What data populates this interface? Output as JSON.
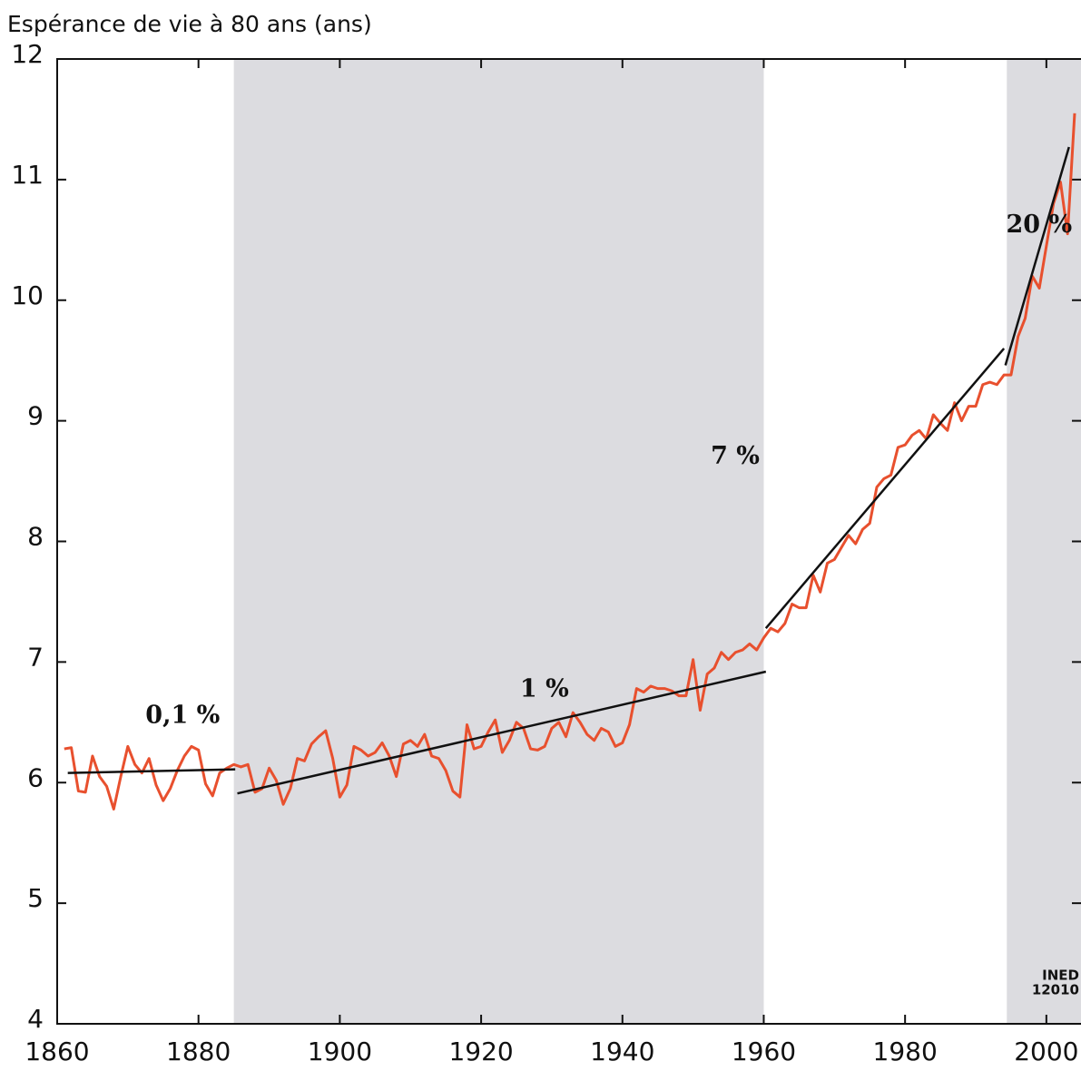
{
  "chart_data": {
    "type": "line",
    "title": "Espérance de vie à 80 ans (ans)",
    "source": [
      "INED",
      "12010"
    ],
    "x": [
      1861,
      1862,
      1863,
      1864,
      1865,
      1866,
      1867,
      1868,
      1869,
      1870,
      1871,
      1872,
      1873,
      1874,
      1875,
      1876,
      1877,
      1878,
      1879,
      1880,
      1881,
      1882,
      1883,
      1884,
      1885,
      1886,
      1887,
      1888,
      1889,
      1890,
      1891,
      1892,
      1893,
      1894,
      1895,
      1896,
      1897,
      1898,
      1899,
      1900,
      1901,
      1902,
      1903,
      1904,
      1905,
      1906,
      1907,
      1908,
      1909,
      1910,
      1911,
      1912,
      1913,
      1914,
      1915,
      1916,
      1917,
      1918,
      1919,
      1920,
      1921,
      1922,
      1923,
      1924,
      1925,
      1926,
      1927,
      1928,
      1929,
      1930,
      1931,
      1932,
      1933,
      1934,
      1935,
      1936,
      1937,
      1938,
      1939,
      1940,
      1941,
      1942,
      1943,
      1944,
      1945,
      1946,
      1947,
      1948,
      1949,
      1950,
      1951,
      1952,
      1953,
      1954,
      1955,
      1956,
      1957,
      1958,
      1959,
      1960,
      1961,
      1962,
      1963,
      1964,
      1965,
      1966,
      1967,
      1968,
      1969,
      1970,
      1971,
      1972,
      1973,
      1974,
      1975,
      1976,
      1977,
      1978,
      1979,
      1980,
      1981,
      1982,
      1983,
      1984,
      1985,
      1986,
      1987,
      1988,
      1989,
      1990,
      1991,
      1992,
      1993,
      1994,
      1995,
      1996,
      1997,
      1998,
      1999,
      2000,
      2001,
      2002,
      2003,
      2004
    ],
    "series": [
      {
        "color": "#e8502e",
        "values": [
          6.28,
          6.29,
          5.93,
          5.92,
          6.22,
          6.05,
          5.97,
          5.78,
          6.05,
          6.3,
          6.15,
          6.08,
          6.2,
          5.98,
          5.85,
          5.95,
          6.1,
          6.22,
          6.3,
          6.27,
          5.99,
          5.89,
          6.08,
          6.12,
          6.15,
          6.13,
          6.15,
          5.92,
          5.95,
          6.12,
          6.02,
          5.82,
          5.95,
          6.2,
          6.18,
          6.32,
          6.38,
          6.43,
          6.2,
          5.88,
          5.98,
          6.3,
          6.27,
          6.22,
          6.25,
          6.33,
          6.22,
          6.05,
          6.32,
          6.35,
          6.3,
          6.4,
          6.22,
          6.2,
          6.1,
          5.93,
          5.88,
          6.48,
          6.28,
          6.3,
          6.42,
          6.52,
          6.25,
          6.35,
          6.5,
          6.45,
          6.28,
          6.27,
          6.3,
          6.45,
          6.5,
          6.38,
          6.58,
          6.5,
          6.4,
          6.35,
          6.45,
          6.42,
          6.3,
          6.33,
          6.48,
          6.78,
          6.75,
          6.8,
          6.78,
          6.78,
          6.76,
          6.72,
          6.72,
          7.02,
          6.6,
          6.9,
          6.95,
          7.08,
          7.02,
          7.08,
          7.1,
          7.15,
          7.1,
          7.2,
          7.28,
          7.25,
          7.32,
          7.48,
          7.45,
          7.45,
          7.72,
          7.58,
          7.82,
          7.85,
          7.95,
          8.05,
          7.98,
          8.1,
          8.15,
          8.45,
          8.52,
          8.55,
          8.78,
          8.8,
          8.88,
          8.92,
          8.85,
          9.05,
          8.98,
          8.92,
          9.15,
          9.0,
          9.12,
          9.12,
          9.3,
          9.32,
          9.3,
          9.38,
          9.38,
          9.7,
          9.85,
          10.2,
          10.1,
          10.45,
          10.8,
          10.98,
          10.55,
          11.55
        ]
      }
    ],
    "trends": [
      {
        "label": "0,1 %",
        "x": [
          1861.5,
          1885.2
        ],
        "y": [
          6.08,
          6.11
        ],
        "label_x": 1872.5,
        "label_y": 6.55
      },
      {
        "label": "1 %",
        "x": [
          1885.5,
          1960.3
        ],
        "y": [
          5.91,
          6.92
        ],
        "label_x": 1925.5,
        "label_y": 6.77
      },
      {
        "label": "7 %",
        "x": [
          1960.3,
          1994
        ],
        "y": [
          7.28,
          9.6
        ],
        "label_x": 1952.5,
        "label_y": 8.7
      },
      {
        "label": "20 %",
        "x": [
          1994.2,
          2003.2
        ],
        "y": [
          9.46,
          11.27
        ],
        "label_x": 1994.3,
        "label_y": 10.62
      }
    ],
    "shaded_periods": [
      [
        1885,
        1960
      ],
      [
        1994.4,
        2004.9
      ]
    ],
    "xlim": [
      1860,
      2004.9
    ],
    "ylim": [
      4,
      12
    ],
    "xticks": [
      1860,
      1880,
      1900,
      1920,
      1940,
      1960,
      1980,
      2000
    ],
    "yticks": [
      4,
      5,
      6,
      7,
      8,
      9,
      10,
      11,
      12
    ]
  }
}
